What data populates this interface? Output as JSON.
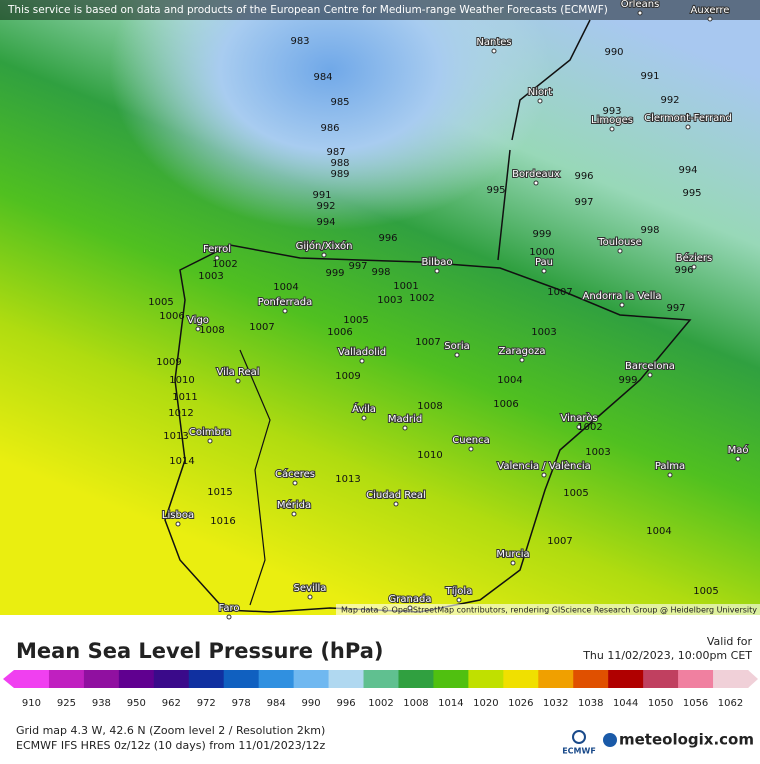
{
  "banner": "This service is based on data and products of the European Centre for Medium-range Weather Forecasts (ECMWF)",
  "attribution": "Map data © OpenStreetMap contributors, rendering GIScience Research Group @ Heidelberg University",
  "cities": [
    "Orleans",
    "Auxerre",
    "Nantes",
    "Niort",
    "Limoges",
    "Clermont-Ferrand",
    "Bordeaux",
    "Toulouse",
    "Pau",
    "Béziers",
    "Andorra la Vella",
    "Barcelona",
    "Ferrol",
    "Gijón/Xixón",
    "Bilbao",
    "Vigo",
    "Ponferrada",
    "Valladolid",
    "Soria",
    "Zaragoza",
    "Vila Real",
    "Ávila",
    "Madrid",
    "Coimbra",
    "Cuenca",
    "Vinaròs",
    "Valencia / València",
    "Palma",
    "Maó",
    "Cáceres",
    "Mérida",
    "Ciudad Real",
    "Lisboa",
    "Murcia",
    "Sevilla",
    "Granada",
    "Tíjola",
    "Faro"
  ],
  "isobar_labels": [
    983,
    984,
    985,
    986,
    987,
    988,
    989,
    991,
    992,
    994,
    996,
    997,
    998,
    999,
    995,
    996,
    997,
    999,
    1000,
    998,
    994,
    995,
    996,
    997,
    990,
    991,
    992,
    993,
    1001,
    1002,
    1003,
    1004,
    1005,
    1006,
    1007,
    1008,
    1003,
    1002,
    1005,
    1006,
    1009,
    1010,
    1011,
    1012,
    1013,
    1014,
    1015,
    1016,
    1009,
    1008,
    1010,
    1013,
    1007,
    1006,
    1004,
    1003,
    1002,
    1003,
    1005,
    1007,
    1004,
    1005,
    999,
    1007
  ],
  "legend": {
    "title": "Mean Sea Level Pressure (hPa)",
    "valid_label": "Valid for",
    "valid_time": "Thu 11/02/2023, 10:00pm CET",
    "ticks": [
      910,
      925,
      938,
      950,
      962,
      972,
      978,
      984,
      990,
      996,
      1002,
      1008,
      1014,
      1020,
      1026,
      1032,
      1038,
      1044,
      1050,
      1056,
      1062
    ],
    "colors": [
      "#f040f0",
      "#c020c0",
      "#9010a0",
      "#600090",
      "#3a0a8a",
      "#1030a0",
      "#1060c0",
      "#3090e0",
      "#70b8f0",
      "#b0d8f0",
      "#60c090",
      "#30a040",
      "#50c010",
      "#c0e000",
      "#f0e000",
      "#f0a000",
      "#e05000",
      "#b00000",
      "#c04060",
      "#f080a0",
      "#f0d0d8"
    ]
  },
  "footer": {
    "grid": "Grid map 4.3 W, 42.6 N (Zoom level 2 / Resolution 2km)",
    "model": "ECMWF IFS HRES 0z/12z (10 days) from 11/01/2023/12z",
    "ecmwf": "ECMWF",
    "brand": "meteologix.com"
  }
}
